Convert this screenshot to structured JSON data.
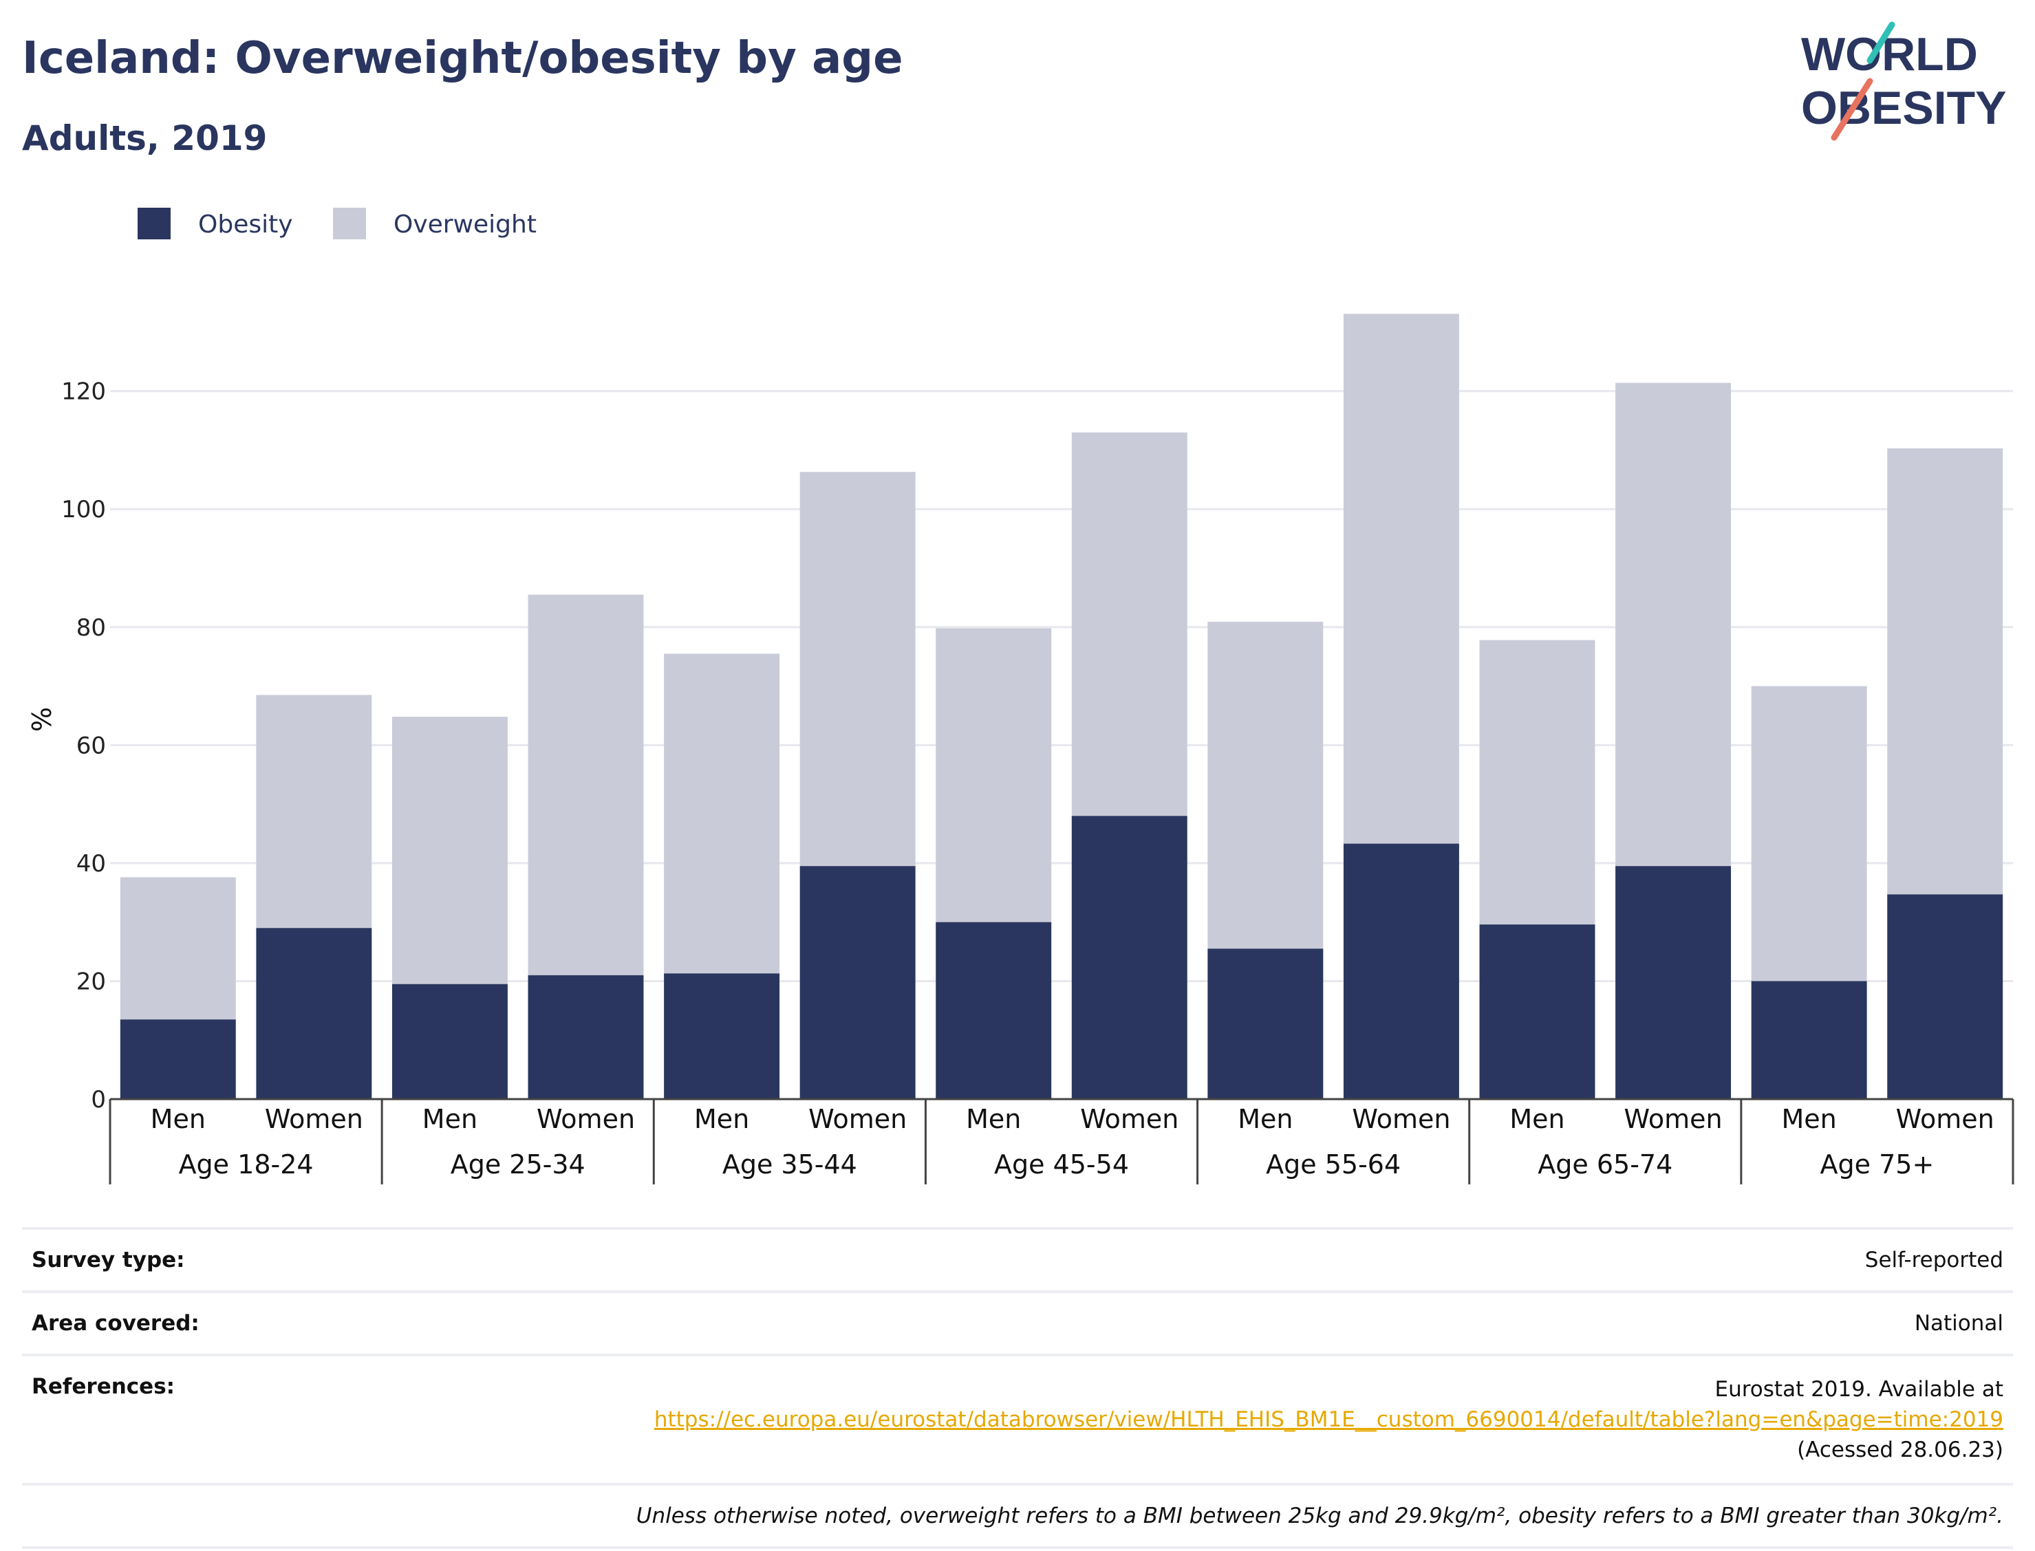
{
  "header": {
    "title": "Iceland: Overweight/obesity by age",
    "subtitle": "Adults, 2019"
  },
  "logo": {
    "line1": "WORLD",
    "line2": "OBESITY",
    "accent_teal": "#2fbfb5",
    "accent_coral": "#e8735f",
    "text_color": "#2a365f"
  },
  "colors": {
    "obesity": "#2a365f",
    "overweight": "#c9ccd8",
    "text": "#2a365f"
  },
  "chart_data": {
    "type": "bar",
    "stacked": true,
    "ylabel": "%",
    "ylim": [
      0,
      135
    ],
    "yticks": [
      0,
      20,
      40,
      60,
      80,
      100,
      120
    ],
    "grid": true,
    "legend_position": "top-left",
    "groups": [
      "Age 18-24",
      "Age 25-34",
      "Age 35-44",
      "Age 45-54",
      "Age 55-64",
      "Age 65-74",
      "Age 75+"
    ],
    "categories": [
      "Men",
      "Women",
      "Men",
      "Women",
      "Men",
      "Women",
      "Men",
      "Women",
      "Men",
      "Women",
      "Men",
      "Women",
      "Men",
      "Women"
    ],
    "series": [
      {
        "name": "Obesity",
        "values": [
          13.5,
          29.0,
          19.5,
          21.0,
          21.3,
          39.5,
          30.0,
          48.0,
          25.5,
          43.3,
          29.6,
          39.5,
          20.0,
          34.7
        ]
      },
      {
        "name": "Overweight",
        "values": [
          24.1,
          39.5,
          45.3,
          64.5,
          54.2,
          66.8,
          49.8,
          65.0,
          55.4,
          89.8,
          48.2,
          81.9,
          50.0,
          75.6
        ]
      }
    ]
  },
  "info_table": {
    "survey_label": "Survey type:",
    "survey_value": "Self-reported",
    "area_label": "Area covered:",
    "area_value": "National",
    "references_label": "References:",
    "references_line1": "Eurostat 2019. Available at",
    "references_link": "https://ec.europa.eu/eurostat/databrowser/view/HLTH_EHIS_BM1E__custom_6690014/default/table?lang=en&page=time:2019",
    "references_line3": "(Acessed 28.06.23)",
    "note": "Unless otherwise noted, overweight refers to a BMI between 25kg and 29.9kg/m², obesity refers to a BMI greater than 30kg/m²."
  }
}
